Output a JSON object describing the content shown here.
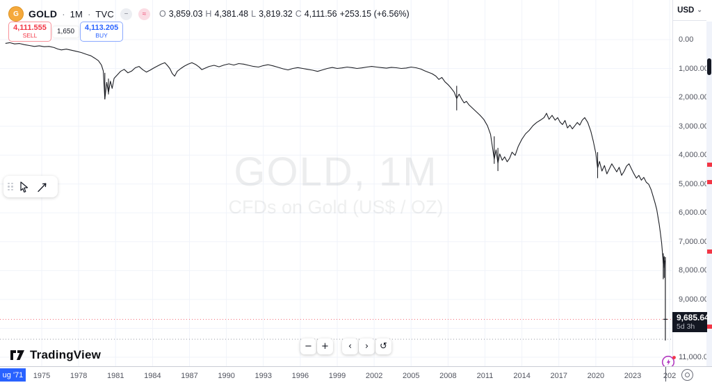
{
  "header": {
    "symbol": "GOLD",
    "sep1": "·",
    "timeframe": "1M",
    "sep2": "·",
    "exchange": "TVC",
    "mini_icon_1": "−",
    "mini_icon_2": "≈",
    "ohlc": {
      "o_label": "O",
      "o": "3,859.03",
      "h_label": "H",
      "h": "4,381.48",
      "l_label": "L",
      "l": "3,819.32",
      "c_label": "C",
      "c": "4,111.56",
      "change": "+253.15 (+6.56%)"
    }
  },
  "trade_panel": {
    "sell_price": "4,111.555",
    "sell_label": "SELL",
    "spread": "1,650",
    "buy_price": "4,113.205",
    "buy_label": "BUY"
  },
  "watermark": {
    "title": "GOLD, 1M",
    "subtitle": "CFDs on Gold (US$ / OZ)"
  },
  "price_scale": {
    "currency": "USD",
    "chevron": "⌄",
    "labels": [
      {
        "v": 0,
        "label": "0.00"
      },
      {
        "v": 1000,
        "label": "1,000.00"
      },
      {
        "v": 2000,
        "label": "2,000.00"
      },
      {
        "v": 3000,
        "label": "3,000.00"
      },
      {
        "v": 4000,
        "label": "4,000.00"
      },
      {
        "v": 5000,
        "label": "5,000.00"
      },
      {
        "v": 6000,
        "label": "6,000.00"
      },
      {
        "v": 7000,
        "label": "7,000.00"
      },
      {
        "v": 8000,
        "label": "8,000.00"
      },
      {
        "v": 9000,
        "label": "9,000.00"
      },
      {
        "v": 10000,
        "label": "10,000.00"
      },
      {
        "v": 11000,
        "label": "11,000.00"
      }
    ],
    "marker_values": [
      4330,
      4930,
      7340,
      9940
    ],
    "countdown_price": "9,685.64",
    "countdown_time": "5d 3h"
  },
  "time_axis": {
    "first_label": "ug '71",
    "years": [
      {
        "t": 1975,
        "label": "1975"
      },
      {
        "t": 1978,
        "label": "1978"
      },
      {
        "t": 1981,
        "label": "1981"
      },
      {
        "t": 1984,
        "label": "1984"
      },
      {
        "t": 1987,
        "label": "1987"
      },
      {
        "t": 1990,
        "label": "1990"
      },
      {
        "t": 1993,
        "label": "1993"
      },
      {
        "t": 1996,
        "label": "1996"
      },
      {
        "t": 1999,
        "label": "1999"
      },
      {
        "t": 2002,
        "label": "2002"
      },
      {
        "t": 2005,
        "label": "2005"
      },
      {
        "t": 2008,
        "label": "2008"
      },
      {
        "t": 2011,
        "label": "2011"
      },
      {
        "t": 2014,
        "label": "2014"
      },
      {
        "t": 2017,
        "label": "2017"
      },
      {
        "t": 2020,
        "label": "2020"
      },
      {
        "t": 2023,
        "label": "2023"
      },
      {
        "t": 2026,
        "label": "202"
      }
    ]
  },
  "nav": {
    "zoom_out": "−",
    "zoom_in": "+",
    "left": "‹",
    "right": "›",
    "reset": "↺"
  },
  "footer": {
    "brand": "TradingView"
  },
  "colors": {
    "sell_red": "#f23645",
    "buy_blue": "#2962ff",
    "grid": "#f0f3fa",
    "series": "#1c1e24",
    "axis_text": "#50535e",
    "boost_purple": "#b23ac0"
  },
  "chart_data": {
    "type": "line",
    "title": "GOLD, 1M — CFDs on Gold (US$ / OZ), inverted price scale",
    "x_axis": {
      "min": 1971.6,
      "max": 2026.5
    },
    "y_axis": {
      "min": 0,
      "max": 11000,
      "inverted": true,
      "grid_step": 1000
    },
    "price_line_value": 9685.64,
    "dotted_line_value": 10375,
    "series": [
      [
        1972.05,
        130
      ],
      [
        1972.4,
        105
      ],
      [
        1972.8,
        150
      ],
      [
        1973.2,
        135
      ],
      [
        1973.6,
        175
      ],
      [
        1974,
        205
      ],
      [
        1974.4,
        235
      ],
      [
        1974.8,
        215
      ],
      [
        1975.2,
        245
      ],
      [
        1975.6,
        235
      ],
      [
        1976,
        275
      ],
      [
        1976.3,
        325
      ],
      [
        1976.6,
        355
      ],
      [
        1977,
        330
      ],
      [
        1977.4,
        365
      ],
      [
        1977.8,
        405
      ],
      [
        1978.2,
        445
      ],
      [
        1978.6,
        505
      ],
      [
        1979,
        560
      ],
      [
        1979.3,
        640
      ],
      [
        1979.6,
        730
      ],
      [
        1979.85,
        880
      ],
      [
        1980,
        1080
      ],
      [
        1980.13,
        2060
      ],
      [
        1980.28,
        1480
      ],
      [
        1980.42,
        1840
      ],
      [
        1980.58,
        1440
      ],
      [
        1980.72,
        1690
      ],
      [
        1980.88,
        1340
      ],
      [
        1981.1,
        1240
      ],
      [
        1981.4,
        1100
      ],
      [
        1981.7,
        1030
      ],
      [
        1982,
        1150
      ],
      [
        1982.3,
        1090
      ],
      [
        1982.6,
        975
      ],
      [
        1982.9,
        930
      ],
      [
        1983.2,
        1040
      ],
      [
        1983.5,
        1125
      ],
      [
        1983.8,
        1060
      ],
      [
        1984.1,
        985
      ],
      [
        1984.4,
        915
      ],
      [
        1984.7,
        850
      ],
      [
        1985,
        800
      ],
      [
        1985.2,
        890
      ],
      [
        1985.4,
        1000
      ],
      [
        1985.6,
        1175
      ],
      [
        1985.8,
        1265
      ],
      [
        1986,
        1100
      ],
      [
        1986.3,
        1000
      ],
      [
        1986.6,
        915
      ],
      [
        1986.9,
        850
      ],
      [
        1987.2,
        800
      ],
      [
        1987.5,
        860
      ],
      [
        1987.8,
        955
      ],
      [
        1988,
        1040
      ],
      [
        1988.3,
        985
      ],
      [
        1988.6,
        930
      ],
      [
        1989,
        890
      ],
      [
        1989.4,
        940
      ],
      [
        1989.8,
        880
      ],
      [
        1990.2,
        840
      ],
      [
        1990.6,
        880
      ],
      [
        1991,
        830
      ],
      [
        1991.4,
        850
      ],
      [
        1991.8,
        890
      ],
      [
        1992.2,
        930
      ],
      [
        1992.6,
        950
      ],
      [
        1993,
        900
      ],
      [
        1993.4,
        870
      ],
      [
        1993.8,
        910
      ],
      [
        1994.2,
        960
      ],
      [
        1994.6,
        1010
      ],
      [
        1995,
        1050
      ],
      [
        1995.4,
        1000
      ],
      [
        1995.8,
        970
      ],
      [
        1996.2,
        1000
      ],
      [
        1996.6,
        1030
      ],
      [
        1997,
        1060
      ],
      [
        1997.4,
        1100
      ],
      [
        1997.8,
        1050
      ],
      [
        1998.2,
        1000
      ],
      [
        1998.6,
        965
      ],
      [
        1999,
        1000
      ],
      [
        1999.4,
        980
      ],
      [
        1999.8,
        950
      ],
      [
        2000.2,
        970
      ],
      [
        2000.6,
        1000
      ],
      [
        2001,
        980
      ],
      [
        2001.4,
        950
      ],
      [
        2001.8,
        930
      ],
      [
        2002.2,
        950
      ],
      [
        2002.6,
        970
      ],
      [
        2003,
        990
      ],
      [
        2003.4,
        960
      ],
      [
        2003.8,
        975
      ],
      [
        2004.2,
        1000
      ],
      [
        2004.6,
        985
      ],
      [
        2005,
        950
      ],
      [
        2005.4,
        975
      ],
      [
        2005.8,
        1020
      ],
      [
        2006.1,
        1080
      ],
      [
        2006.4,
        1130
      ],
      [
        2006.7,
        1180
      ],
      [
        2007,
        1260
      ],
      [
        2007.25,
        1380
      ],
      [
        2007.5,
        1310
      ],
      [
        2007.75,
        1460
      ],
      [
        2008,
        1560
      ],
      [
        2008.25,
        1680
      ],
      [
        2008.5,
        1820
      ],
      [
        2008.7,
        2040
      ],
      [
        2008.9,
        1890
      ],
      [
        2009.1,
        2050
      ],
      [
        2009.3,
        2190
      ],
      [
        2009.5,
        2140
      ],
      [
        2009.7,
        2260
      ],
      [
        2010,
        2380
      ],
      [
        2010.3,
        2500
      ],
      [
        2010.6,
        2620
      ],
      [
        2010.9,
        2760
      ],
      [
        2011.2,
        2980
      ],
      [
        2011.45,
        3280
      ],
      [
        2011.6,
        3700
      ],
      [
        2011.75,
        4140
      ],
      [
        2011.9,
        3820
      ],
      [
        2012.05,
        4280
      ],
      [
        2012.2,
        3960
      ],
      [
        2012.4,
        4180
      ],
      [
        2012.6,
        4060
      ],
      [
        2012.8,
        4230
      ],
      [
        2013,
        4110
      ],
      [
        2013.2,
        3900
      ],
      [
        2013.45,
        4010
      ],
      [
        2013.7,
        3700
      ],
      [
        2014,
        3450
      ],
      [
        2014.3,
        3260
      ],
      [
        2014.6,
        3140
      ],
      [
        2014.9,
        2980
      ],
      [
        2015.2,
        2870
      ],
      [
        2015.5,
        2790
      ],
      [
        2015.8,
        2700
      ],
      [
        2016,
        2550
      ],
      [
        2016.2,
        2760
      ],
      [
        2016.45,
        2620
      ],
      [
        2016.7,
        2790
      ],
      [
        2016.9,
        2700
      ],
      [
        2017.1,
        2860
      ],
      [
        2017.3,
        2940
      ],
      [
        2017.5,
        2800
      ],
      [
        2017.7,
        3060
      ],
      [
        2017.9,
        2960
      ],
      [
        2018.1,
        3090
      ],
      [
        2018.3,
        2980
      ],
      [
        2018.5,
        2870
      ],
      [
        2018.7,
        2960
      ],
      [
        2018.9,
        2790
      ],
      [
        2019.1,
        2700
      ],
      [
        2019.35,
        2870
      ],
      [
        2019.6,
        3180
      ],
      [
        2019.8,
        3520
      ],
      [
        2020,
        3940
      ],
      [
        2020.15,
        4450
      ],
      [
        2020.3,
        4220
      ],
      [
        2020.5,
        4550
      ],
      [
        2020.7,
        4360
      ],
      [
        2020.9,
        4650
      ],
      [
        2021.1,
        4480
      ],
      [
        2021.3,
        4300
      ],
      [
        2021.5,
        4440
      ],
      [
        2021.7,
        4580
      ],
      [
        2021.9,
        4420
      ],
      [
        2022.1,
        4700
      ],
      [
        2022.3,
        4560
      ],
      [
        2022.5,
        4380
      ],
      [
        2022.7,
        4300
      ],
      [
        2022.9,
        4480
      ],
      [
        2023.1,
        4650
      ],
      [
        2023.3,
        4800
      ],
      [
        2023.5,
        4700
      ],
      [
        2023.7,
        4870
      ],
      [
        2023.9,
        4770
      ],
      [
        2024.1,
        4940
      ],
      [
        2024.3,
        5010
      ],
      [
        2024.5,
        5200
      ],
      [
        2024.65,
        5420
      ],
      [
        2024.8,
        5640
      ],
      [
        2024.95,
        5880
      ],
      [
        2025.05,
        6140
      ],
      [
        2025.15,
        6400
      ],
      [
        2025.25,
        6700
      ],
      [
        2025.35,
        7050
      ],
      [
        2025.42,
        7400
      ],
      [
        2025.48,
        7750
      ],
      [
        2025.52,
        7550
      ],
      [
        2025.56,
        7900
      ],
      [
        2025.6,
        7650
      ]
    ],
    "wicks": [
      [
        1980.13,
        1150,
        2070
      ],
      [
        1980.42,
        1350,
        1900
      ],
      [
        2008.7,
        1600,
        2450
      ],
      [
        2011.75,
        3350,
        4300
      ],
      [
        2012.05,
        3750,
        4550
      ],
      [
        2020.15,
        3900,
        4800
      ],
      [
        2025.48,
        7400,
        8300
      ],
      [
        2025.56,
        7500,
        8250
      ]
    ],
    "final_bar": {
      "t": 2025.65,
      "high": 7530,
      "low": 10420,
      "close": 9685.64
    }
  }
}
